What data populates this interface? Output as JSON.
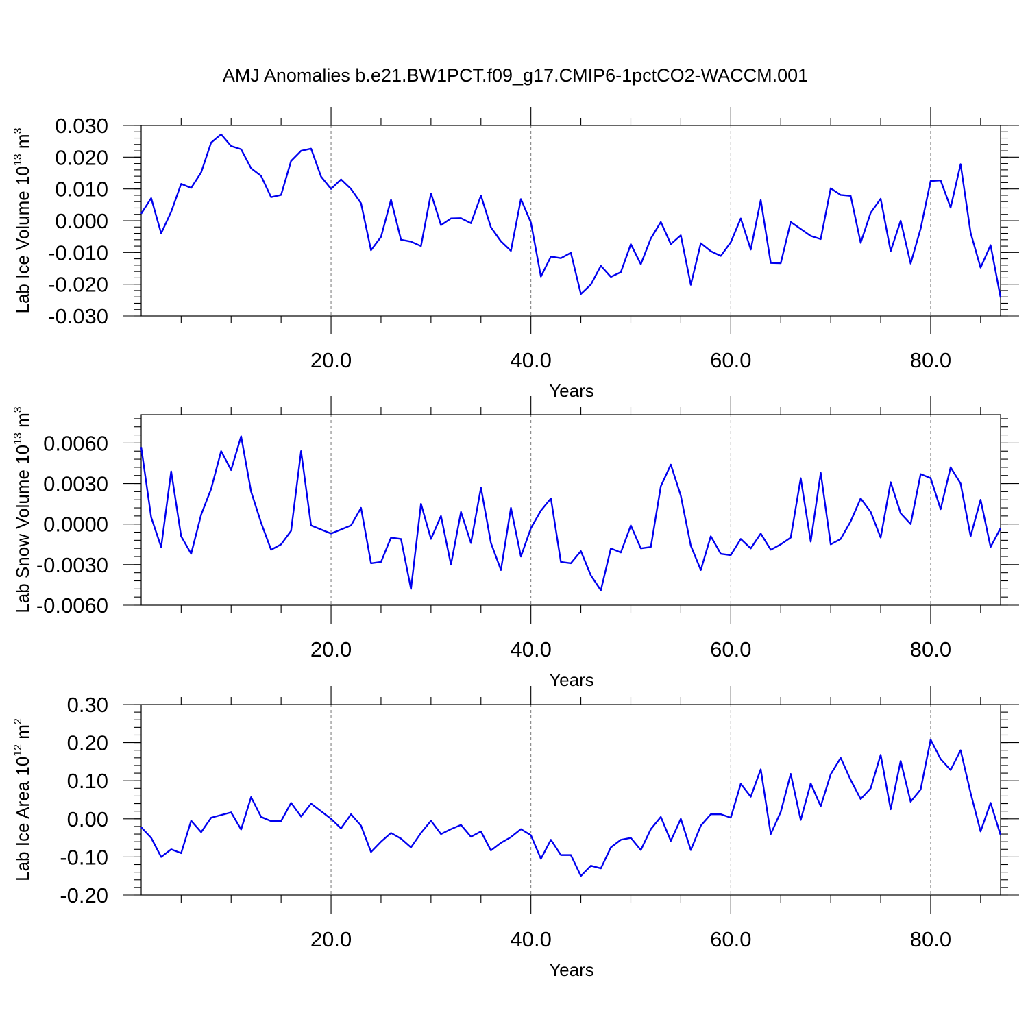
{
  "figure": {
    "title": "AMJ Anomalies b.e21.BW1PCT.f09_g17.CMIP6-1pctCO2-WACCM.001"
  },
  "chart_data": [
    {
      "type": "line",
      "ylabel": {
        "base": "Lab Ice Volume 10",
        "exp": "13",
        "unit": " m",
        "unit_exp": "3"
      },
      "xlabel": "Years",
      "xlim": [
        1,
        87
      ],
      "ylim": [
        -0.03,
        0.03
      ],
      "xticks": [
        20,
        40,
        60,
        80
      ],
      "xtick_labels": [
        "20.0",
        "40.0",
        "60.0",
        "80.0"
      ],
      "yticks": [
        -0.03,
        -0.02,
        -0.01,
        0.0,
        0.01,
        0.02,
        0.03
      ],
      "ytick_labels": [
        "-0.030",
        "-0.020",
        "-0.010",
        "0.000",
        "0.010",
        "0.020",
        "0.030"
      ],
      "grid": "vertical-dashed",
      "color": "#0000ee",
      "series": [
        {
          "values": [
            0.0022,
            0.0071,
            -0.004,
            0.0028,
            0.0116,
            0.0103,
            0.0152,
            0.0246,
            0.0272,
            0.0235,
            0.0225,
            0.0165,
            0.0141,
            0.0074,
            0.0081,
            0.0188,
            0.022,
            0.0227,
            0.0139,
            0.01,
            0.013,
            0.01,
            0.0055,
            -0.0093,
            -0.0051,
            0.0066,
            -0.006,
            -0.0066,
            -0.008,
            0.0086,
            -0.0014,
            0.0007,
            0.0008,
            -0.0008,
            0.0079,
            -0.0021,
            -0.0065,
            -0.0095,
            0.0068,
            -0.0006,
            -0.0176,
            -0.0113,
            -0.0118,
            -0.0101,
            -0.0231,
            -0.0201,
            -0.0142,
            -0.0177,
            -0.0162,
            -0.0074,
            -0.0137,
            -0.0056,
            -0.0004,
            -0.0074,
            -0.0046,
            -0.0202,
            -0.0071,
            -0.0096,
            -0.0111,
            -0.0068,
            0.0007,
            -0.0091,
            0.0065,
            -0.0133,
            -0.0134,
            -0.0004,
            -0.0026,
            -0.0048,
            -0.0058,
            0.0102,
            0.0081,
            0.0078,
            -0.007,
            0.0025,
            0.0069,
            -0.0096,
            0.0,
            -0.0135,
            -0.0025,
            0.0125,
            0.0127,
            0.0041,
            0.0178,
            -0.0038,
            -0.0148,
            -0.0077,
            -0.0242
          ]
        }
      ]
    },
    {
      "type": "line",
      "ylabel": {
        "base": "Lab Snow Volume 10",
        "exp": "13",
        "unit": " m",
        "unit_exp": "3"
      },
      "xlabel": "Years",
      "xlim": [
        1,
        87
      ],
      "ylim": [
        -0.006,
        0.0081
      ],
      "xticks": [
        20,
        40,
        60,
        80
      ],
      "xtick_labels": [
        "20.0",
        "40.0",
        "60.0",
        "80.0"
      ],
      "yticks": [
        -0.006,
        -0.003,
        0.0,
        0.003,
        0.006
      ],
      "ytick_labels": [
        "-0.0060",
        "-0.0030",
        "0.0000",
        "0.0030",
        "0.0060"
      ],
      "grid": "vertical-dashed",
      "color": "#0000ee",
      "series": [
        {
          "values": [
            0.0057,
            0.0005,
            -0.0017,
            0.0039,
            -0.0009,
            -0.0022,
            0.0007,
            0.0026,
            0.0054,
            0.004,
            0.0065,
            0.0024,
            0.0001,
            -0.0019,
            -0.0015,
            -0.0005,
            0.0054,
            -0.0001,
            -0.0004,
            -0.0007,
            -0.0004,
            -0.0001,
            0.0012,
            -0.0029,
            -0.0028,
            -0.001,
            -0.0011,
            -0.0048,
            0.0015,
            -0.0011,
            0.0006,
            -0.003,
            0.0009,
            -0.0014,
            0.0027,
            -0.0014,
            -0.0034,
            0.0012,
            -0.0024,
            -0.0003,
            0.001,
            0.0019,
            -0.0028,
            -0.0029,
            -0.002,
            -0.0038,
            -0.0049,
            -0.0018,
            -0.0021,
            -0.0001,
            -0.0018,
            -0.0017,
            0.0028,
            0.0044,
            0.0021,
            -0.0016,
            -0.0034,
            -0.0009,
            -0.0022,
            -0.0023,
            -0.0011,
            -0.0018,
            -0.0007,
            -0.0019,
            -0.0015,
            -0.001,
            0.0034,
            -0.0013,
            0.0038,
            -0.0015,
            -0.0011,
            0.0002,
            0.0019,
            0.0009,
            -0.001,
            0.0031,
            0.0008,
            -0.0,
            0.0037,
            0.0034,
            0.0011,
            0.0042,
            0.003,
            -0.0009,
            0.0018,
            -0.0017,
            -0.0003
          ]
        }
      ]
    },
    {
      "type": "line",
      "ylabel": {
        "base": "Lab Ice Area 10",
        "exp": "12",
        "unit": " m",
        "unit_exp": "2"
      },
      "xlabel": "Years",
      "xlim": [
        1,
        87
      ],
      "ylim": [
        -0.2,
        0.3
      ],
      "xticks": [
        20,
        40,
        60,
        80
      ],
      "xtick_labels": [
        "20.0",
        "40.0",
        "60.0",
        "80.0"
      ],
      "yticks": [
        -0.2,
        -0.1,
        0.0,
        0.1,
        0.2,
        0.3
      ],
      "ytick_labels": [
        "-0.20",
        "-0.10",
        "0.00",
        "0.10",
        "0.20",
        "0.30"
      ],
      "grid": "vertical-dashed",
      "color": "#0000ee",
      "series": [
        {
          "values": [
            -0.022,
            -0.05,
            -0.1,
            -0.08,
            -0.09,
            -0.005,
            -0.035,
            0.003,
            0.01,
            0.017,
            -0.028,
            0.057,
            0.005,
            -0.006,
            -0.006,
            0.042,
            0.006,
            0.04,
            0.02,
            0.0,
            -0.025,
            0.012,
            -0.018,
            -0.087,
            -0.06,
            -0.037,
            -0.052,
            -0.075,
            -0.037,
            -0.005,
            -0.04,
            -0.027,
            -0.016,
            -0.047,
            -0.033,
            -0.083,
            -0.063,
            -0.048,
            -0.027,
            -0.043,
            -0.105,
            -0.055,
            -0.095,
            -0.095,
            -0.15,
            -0.123,
            -0.13,
            -0.075,
            -0.055,
            -0.05,
            -0.082,
            -0.027,
            0.005,
            -0.058,
            0.0,
            -0.082,
            -0.018,
            0.012,
            0.012,
            0.003,
            0.092,
            0.058,
            0.13,
            -0.04,
            0.018,
            0.118,
            -0.003,
            0.093,
            0.033,
            0.117,
            0.16,
            0.102,
            0.052,
            0.08,
            0.168,
            0.025,
            0.152,
            0.045,
            0.077,
            0.208,
            0.157,
            0.128,
            0.18,
            0.068,
            -0.033,
            0.042,
            -0.043
          ]
        }
      ]
    }
  ]
}
